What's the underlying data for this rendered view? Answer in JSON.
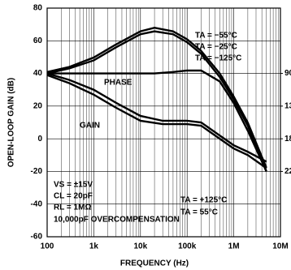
{
  "chart_data": {
    "type": "line",
    "ylabel": "OPEN-LOOP GAIN (dB)",
    "xlabel": "FREQUENCY (Hz)",
    "xscale": "log",
    "grid": true,
    "xlim": [
      100,
      10000000
    ],
    "xticks": [
      {
        "value": 100,
        "label": "100"
      },
      {
        "value": 1000,
        "label": "1k"
      },
      {
        "value": 10000,
        "label": "10k"
      },
      {
        "value": 100000,
        "label": "100k"
      },
      {
        "value": 1000000,
        "label": "1M"
      },
      {
        "value": 10000000,
        "label": "10M"
      }
    ],
    "ylim": [
      -60,
      80
    ],
    "yticks": [
      -60,
      -40,
      -20,
      0,
      20,
      40,
      60,
      80
    ],
    "y2lim": [
      315,
      0
    ],
    "y2ticks": [
      90,
      135,
      180,
      225
    ],
    "color": "#000000",
    "series": [
      {
        "name": "TA = −55°C",
        "axis": "y2",
        "x": [
          100,
          300,
          1000,
          3000,
          10000,
          20000,
          50000,
          100000,
          200000,
          500000,
          1000000,
          2000000,
          5000000
        ],
        "values": [
          88,
          81,
          68,
          50,
          32,
          27,
          32,
          43,
          59,
          90,
          122,
          158,
          220
        ]
      },
      {
        "name": "TA = −25°C",
        "axis": "y2",
        "x": [
          100,
          300,
          1000,
          3000,
          10000,
          20000,
          50000,
          100000,
          200000,
          500000,
          1000000,
          2000000,
          5000000
        ],
        "values": [
          90,
          83,
          72,
          54,
          36,
          32,
          36,
          47,
          63,
          95,
          126,
          162,
          225
        ]
      },
      {
        "name": "TA = −125°C",
        "axis": "y2",
        "x": [
          100,
          300,
          1000,
          3000,
          10000,
          20000,
          50000,
          100000,
          200000,
          500000,
          1000000,
          2000000,
          5000000
        ],
        "values": [
          90,
          90,
          90,
          90,
          90,
          90,
          88,
          86,
          86,
          101,
          131,
          169,
          225
        ]
      },
      {
        "name": "TA = +125°C",
        "x": [
          100,
          300,
          1000,
          3000,
          10000,
          30000,
          100000,
          200000,
          500000,
          1000000,
          2000000,
          5000000
        ],
        "values": [
          40,
          36,
          30,
          22,
          14,
          11,
          11,
          10,
          2,
          -4,
          -8,
          -14
        ]
      },
      {
        "name": "TA = 55°C",
        "x": [
          100,
          300,
          1000,
          3000,
          10000,
          30000,
          100000,
          200000,
          500000,
          1000000,
          2000000,
          5000000
        ],
        "values": [
          39,
          34,
          27,
          19,
          11,
          9,
          9,
          8,
          0,
          -6,
          -10,
          -18
        ]
      }
    ],
    "annotations": [
      "PHASE",
      "GAIN",
      "VS = ±15V",
      "CL = 20pF",
      "RL = 1MΩ",
      "10,000pF OVERCOMPENSATION"
    ]
  }
}
